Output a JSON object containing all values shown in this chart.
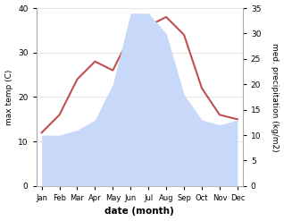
{
  "months": [
    "Jan",
    "Feb",
    "Mar",
    "Apr",
    "May",
    "Jun",
    "Jul",
    "Aug",
    "Sep",
    "Oct",
    "Nov",
    "Dec"
  ],
  "temperature": [
    12,
    16,
    24,
    28,
    26,
    34,
    36,
    38,
    34,
    22,
    16,
    15
  ],
  "precipitation": [
    10,
    10,
    11,
    13,
    20,
    34,
    34,
    30,
    18,
    13,
    12,
    13
  ],
  "temp_color": "#c0504d",
  "precip_fill_color": "#c8d8f8",
  "left_ylim": [
    0,
    40
  ],
  "right_ylim": [
    0,
    35
  ],
  "left_yticks": [
    0,
    10,
    20,
    30,
    40
  ],
  "right_yticks": [
    0,
    5,
    10,
    15,
    20,
    25,
    30,
    35
  ],
  "left_ylabel": "max temp (C)",
  "right_ylabel": "med. precipitation (kg/m2)",
  "xlabel": "date (month)",
  "bg_color": "#ffffff",
  "grid_color": "#dddddd",
  "spine_color": "#aaaaaa"
}
